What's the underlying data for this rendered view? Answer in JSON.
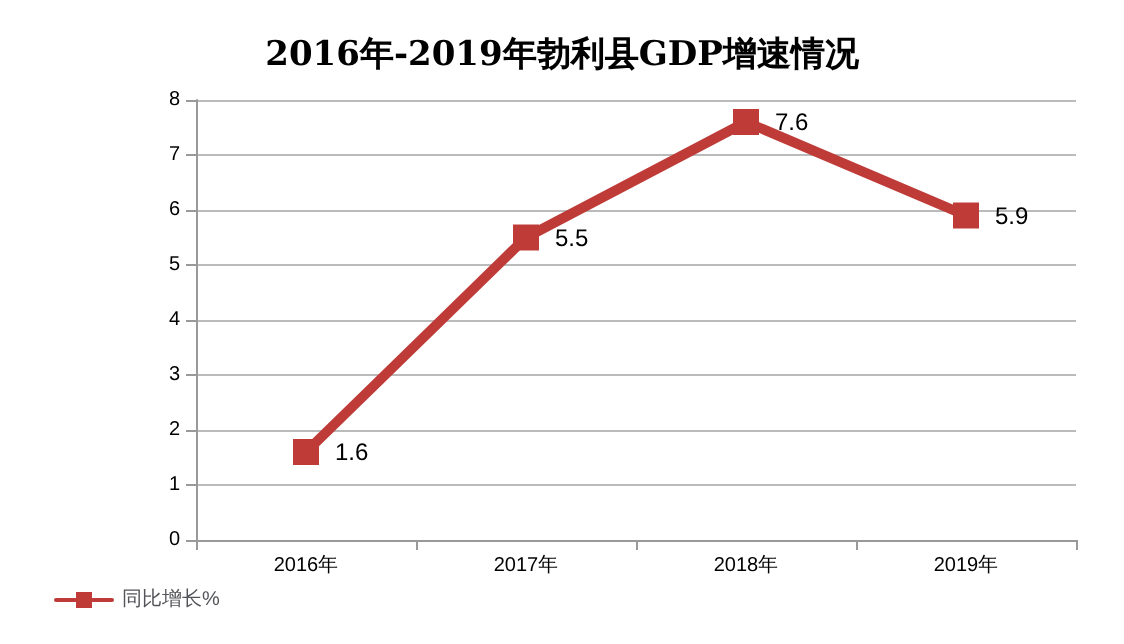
{
  "chart_data": {
    "type": "line",
    "title": "2016年-2019年勃利县GDP增速情况",
    "categories": [
      "2016年",
      "2017年",
      "2018年",
      "2019年"
    ],
    "series": [
      {
        "name": "同比增长%",
        "color": "#be3b38",
        "values": [
          1.6,
          5.5,
          7.6,
          5.9
        ]
      }
    ],
    "ylim": [
      0,
      8
    ],
    "yticks": [
      0,
      1,
      2,
      3,
      4,
      5,
      6,
      7,
      8
    ],
    "grid": "y",
    "legend": "bottom left",
    "data_labels": true,
    "marker": "square",
    "line_style": "solid"
  }
}
